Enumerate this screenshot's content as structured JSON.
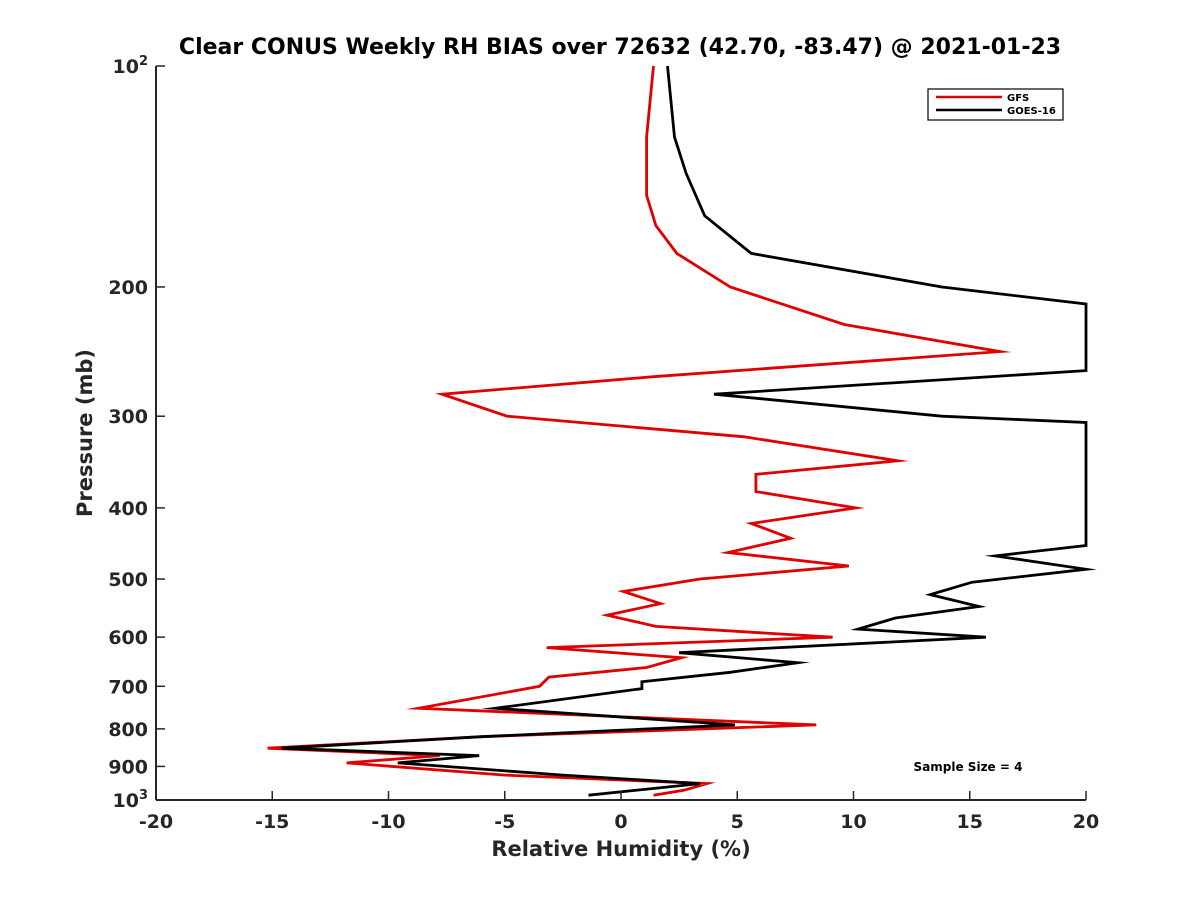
{
  "chart_data": {
    "type": "line",
    "title": "Clear CONUS Weekly RH BIAS over 72632 (42.70, -83.47) @ 2021-01-23",
    "xlabel": "Relative Humidity (%)",
    "ylabel": "Pressure (mb)",
    "xlim": [
      -20,
      20
    ],
    "ylim": [
      100,
      1000
    ],
    "y_scale": "log",
    "y_reversed": true,
    "x_ticks": [
      "-20",
      "-15",
      "-10",
      "-5",
      "0",
      "5",
      "10",
      "15",
      "20"
    ],
    "y_ticks": [
      {
        "value": 100,
        "base": "10",
        "exp": "2"
      },
      {
        "value": 200,
        "label": "200"
      },
      {
        "value": 300,
        "label": "300"
      },
      {
        "value": 400,
        "label": "400"
      },
      {
        "value": 500,
        "label": "500"
      },
      {
        "value": 600,
        "label": "600"
      },
      {
        "value": 700,
        "label": "700"
      },
      {
        "value": 800,
        "label": "800"
      },
      {
        "value": 900,
        "label": "900"
      },
      {
        "value": 1000,
        "base": "10",
        "exp": "3"
      }
    ],
    "legend_position": "top-right",
    "grid": false,
    "annotation": "Sample Size = 4",
    "series": [
      {
        "name": "GFS",
        "color": "#e00000",
        "points": [
          [
            1.4,
            100
          ],
          [
            1.1,
            125
          ],
          [
            1.1,
            150
          ],
          [
            1.5,
            165
          ],
          [
            2.4,
            180
          ],
          [
            4.7,
            200
          ],
          [
            9.6,
            225
          ],
          [
            16.3,
            245
          ],
          [
            1.4,
            265
          ],
          [
            -7.7,
            280
          ],
          [
            -4.9,
            300
          ],
          [
            5.3,
            320
          ],
          [
            11.9,
            345
          ],
          [
            5.8,
            360
          ],
          [
            5.8,
            380
          ],
          [
            10.1,
            400
          ],
          [
            5.6,
            420
          ],
          [
            7.3,
            440
          ],
          [
            4.6,
            460
          ],
          [
            9.8,
            480
          ],
          [
            3.4,
            500
          ],
          [
            0.1,
            520
          ],
          [
            1.7,
            540
          ],
          [
            -0.6,
            560
          ],
          [
            1.5,
            580
          ],
          [
            9.1,
            600
          ],
          [
            -3.2,
            620
          ],
          [
            2.6,
            640
          ],
          [
            1.1,
            660
          ],
          [
            -3.1,
            680
          ],
          [
            -3.5,
            700
          ],
          [
            -8.7,
            750
          ],
          [
            8.4,
            790
          ],
          [
            -6.0,
            820
          ],
          [
            -15.2,
            850
          ],
          [
            -7.8,
            870
          ],
          [
            -11.8,
            890
          ],
          [
            -5.0,
            925
          ],
          [
            3.7,
            950
          ],
          [
            2.7,
            970
          ],
          [
            1.4,
            985
          ]
        ]
      },
      {
        "name": "GOES-16",
        "color": "#000000",
        "points": [
          [
            2.0,
            100
          ],
          [
            2.3,
            125
          ],
          [
            2.8,
            140
          ],
          [
            3.6,
            160
          ],
          [
            5.6,
            180
          ],
          [
            13.8,
            200
          ],
          [
            20.0,
            211
          ],
          [
            20.0,
            260
          ],
          [
            4.0,
            280
          ],
          [
            13.8,
            300
          ],
          [
            20.0,
            306
          ],
          [
            20.0,
            450
          ],
          [
            16.1,
            465
          ],
          [
            20.0,
            485
          ],
          [
            15.1,
            505
          ],
          [
            13.3,
            525
          ],
          [
            15.4,
            545
          ],
          [
            11.8,
            565
          ],
          [
            10.2,
            585
          ],
          [
            15.7,
            600
          ],
          [
            2.5,
            630
          ],
          [
            7.6,
            650
          ],
          [
            4.7,
            670
          ],
          [
            0.9,
            690
          ],
          [
            0.9,
            705
          ],
          [
            -5.4,
            750
          ],
          [
            4.9,
            790
          ],
          [
            -6.0,
            820
          ],
          [
            -14.6,
            850
          ],
          [
            -6.1,
            870
          ],
          [
            -9.6,
            890
          ],
          [
            -2.5,
            925
          ],
          [
            3.4,
            950
          ],
          [
            -1.4,
            985
          ]
        ]
      }
    ]
  }
}
